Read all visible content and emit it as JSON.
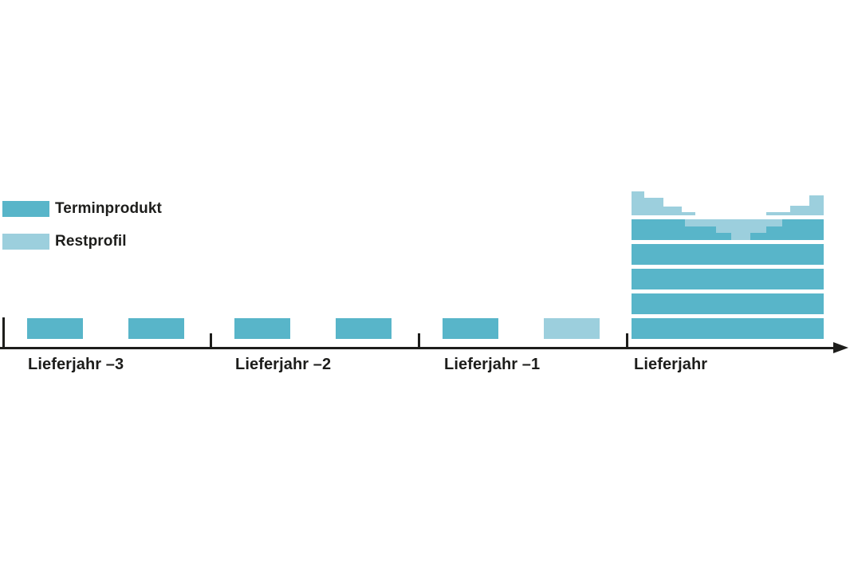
{
  "figure": {
    "background": "#ffffff",
    "text_color": "#1d1d1b"
  },
  "colors": {
    "terminprodukt": "#58b5c9",
    "restprofil": "#9ccfdd",
    "axis": "#1d1d1b"
  },
  "legend": {
    "items": [
      {
        "label": "Terminprodukt",
        "color_key": "terminprodukt"
      },
      {
        "label": "Restprofil",
        "color_key": "restprofil"
      }
    ]
  },
  "chart_data": {
    "type": "bar",
    "title": "",
    "xlabel": "",
    "ylabel": "",
    "legend_position": "top-left",
    "categories": [
      "Lieferjahr –3",
      "Lieferjahr –2",
      "Lieferjahr –1",
      "Lieferjahr"
    ],
    "description": "Schematic procurement timeline: in each year before the delivery year two forward-product tranches (Terminprodukt) are bought; in the delivery year the purchased tranches stack up to cover the load, leaving a seasonal residual profile (Restprofil) that is high in winter and near zero in summer.",
    "tranche_bars": [
      {
        "section": 0,
        "slot": 0,
        "series": "Terminprodukt",
        "color_key": "terminprodukt"
      },
      {
        "section": 0,
        "slot": 1,
        "series": "Terminprodukt",
        "color_key": "terminprodukt"
      },
      {
        "section": 1,
        "slot": 0,
        "series": "Terminprodukt",
        "color_key": "terminprodukt"
      },
      {
        "section": 1,
        "slot": 1,
        "series": "Terminprodukt",
        "color_key": "terminprodukt"
      },
      {
        "section": 2,
        "slot": 0,
        "series": "Terminprodukt",
        "color_key": "terminprodukt"
      },
      {
        "section": 2,
        "slot": 1,
        "series": "Restprofil",
        "color_key": "restprofil"
      }
    ],
    "delivery_year_stack": {
      "full_layers": 5,
      "layer_series": "Terminprodukt",
      "layer_color_key": "terminprodukt",
      "residual_dip": {
        "series": "Restprofil",
        "color_key": "restprofil",
        "note": "light valley cut into the top stacked layer, deepest mid-year",
        "steps": [
          {
            "from": 0.0,
            "to": 0.28,
            "depth": 0
          },
          {
            "from": 0.28,
            "to": 0.44,
            "depth": 0.35
          },
          {
            "from": 0.44,
            "to": 0.52,
            "depth": 0.65
          },
          {
            "from": 0.52,
            "to": 0.62,
            "depth": 1.0
          },
          {
            "from": 0.62,
            "to": 0.7,
            "depth": 0.65
          },
          {
            "from": 0.7,
            "to": 0.785,
            "depth": 0.35
          },
          {
            "from": 0.785,
            "to": 1.0,
            "depth": 0
          }
        ]
      },
      "residual_top_profile": {
        "series": "Restprofil",
        "color_key": "restprofil",
        "note": "stepped residual profile on top: high at year start and end, zero mid-year",
        "steps": [
          {
            "from": 0.0,
            "to": 0.067,
            "height": 1.0
          },
          {
            "from": 0.067,
            "to": 0.167,
            "height": 0.73
          },
          {
            "from": 0.167,
            "to": 0.262,
            "height": 0.38
          },
          {
            "from": 0.262,
            "to": 0.333,
            "height": 0.13
          },
          {
            "from": 0.333,
            "to": 0.7,
            "height": 0
          },
          {
            "from": 0.7,
            "to": 0.825,
            "height": 0.13
          },
          {
            "from": 0.825,
            "to": 0.925,
            "height": 0.4
          },
          {
            "from": 0.925,
            "to": 1.0,
            "height": 0.83
          }
        ]
      }
    }
  }
}
